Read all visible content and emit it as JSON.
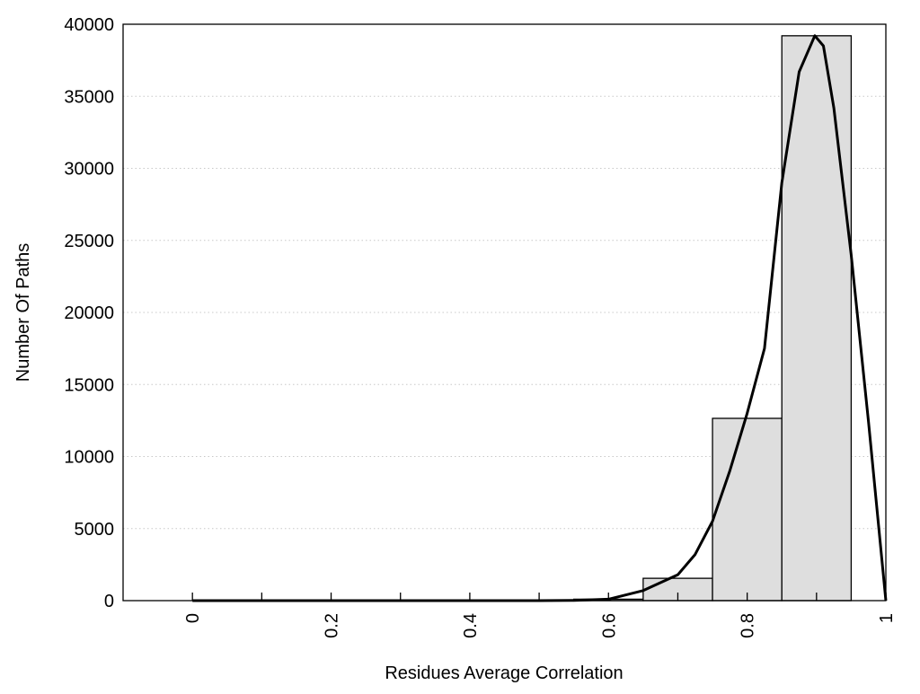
{
  "chart_data": {
    "type": "bar",
    "title": "",
    "xlabel": "Residues Average Correlation",
    "ylabel": "Number Of Paths",
    "xlim": [
      -0.1,
      1.0
    ],
    "ylim": [
      0,
      40000
    ],
    "grid": "horizontal dotted",
    "xticks": [
      0,
      0.2,
      0.4,
      0.6,
      0.8,
      1
    ],
    "xtick_labels": [
      "0",
      "0.2",
      "0.4",
      "0.6",
      "0.8",
      "1"
    ],
    "minor_xticks": [
      0.1,
      0.3,
      0.5,
      0.7,
      0.9
    ],
    "yticks": [
      0,
      5000,
      10000,
      15000,
      20000,
      25000,
      30000,
      35000,
      40000
    ],
    "ytick_labels": [
      "0",
      "5000",
      "10000",
      "15000",
      "20000",
      "25000",
      "30000",
      "35000",
      "40000"
    ],
    "bars": [
      {
        "x0": 0.55,
        "x1": 0.65,
        "value": 100
      },
      {
        "x0": 0.65,
        "x1": 0.75,
        "value": 1550
      },
      {
        "x0": 0.75,
        "x1": 0.85,
        "value": 12650
      },
      {
        "x0": 0.85,
        "x1": 0.95,
        "value": 39200
      }
    ],
    "curve": {
      "x": [
        0,
        0.1,
        0.2,
        0.3,
        0.4,
        0.5,
        0.55,
        0.6,
        0.65,
        0.7,
        0.725,
        0.75,
        0.775,
        0.8,
        0.825,
        0.85,
        0.875,
        0.8975,
        0.91,
        0.925,
        0.95,
        0.975,
        1.0
      ],
      "y": [
        0,
        0,
        0,
        0,
        0,
        0,
        20,
        100,
        700,
        1800,
        3200,
        5500,
        9000,
        13000,
        17500,
        29000,
        36700,
        39200,
        38500,
        34200,
        24000,
        12400,
        0
      ]
    },
    "colors": {
      "bar_fill": "#dedede",
      "bar_stroke": "#000000",
      "curve": "#000000",
      "grid": "#c8c8c8"
    }
  }
}
